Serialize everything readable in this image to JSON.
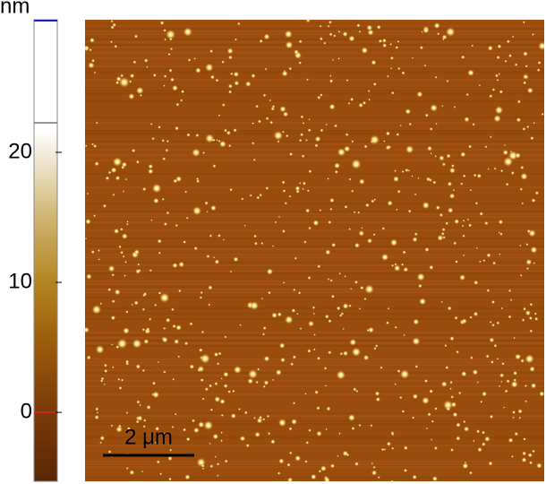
{
  "colorbar": {
    "label": "nm",
    "ticks": [
      0,
      10,
      20
    ],
    "lim": [
      -5.3,
      30.2
    ]
  },
  "scale_bar": {
    "label": "2 μm"
  }
}
